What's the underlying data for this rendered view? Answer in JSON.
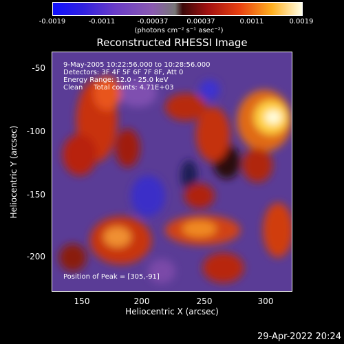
{
  "colorbar": {
    "ticks": [
      "-0.0019",
      "-0.0011",
      "-0.00037",
      "0.00037",
      "0.0011",
      "0.0019"
    ],
    "units": "(photons cm⁻² s⁻¹ asec⁻²)"
  },
  "plot": {
    "title": "Reconstructed RHESSI Image",
    "annotation_lines": [
      "9-May-2005 10:22:56.000 to 10:28:56.000",
      "Detectors: 3F 4F 5F 6F 7F 8F, Att 0",
      "Energy Range: 12.0 - 25.0 keV",
      "Clean     Total counts: 4.71E+03"
    ],
    "peak_label": "Position of Peak = [305,-91]",
    "xlabel": "Heliocentric X (arcsec)",
    "ylabel": "Heliocentric Y (arcsec)",
    "xticks": [
      "150",
      "200",
      "250",
      "300"
    ],
    "yticks": [
      "-50",
      "-100",
      "-150",
      "-200"
    ]
  },
  "footer": {
    "date": "29-Apr-2022 20:24"
  },
  "chart_data": {
    "type": "heatmap",
    "title": "Reconstructed RHESSI Image",
    "xlabel": "Heliocentric X (arcsec)",
    "ylabel": "Heliocentric Y (arcsec)",
    "xlim": [
      126,
      320
    ],
    "ylim": [
      -226,
      -40
    ],
    "color_range": [
      -0.0019,
      0.0019
    ],
    "peak": [
      305,
      -91
    ]
  }
}
